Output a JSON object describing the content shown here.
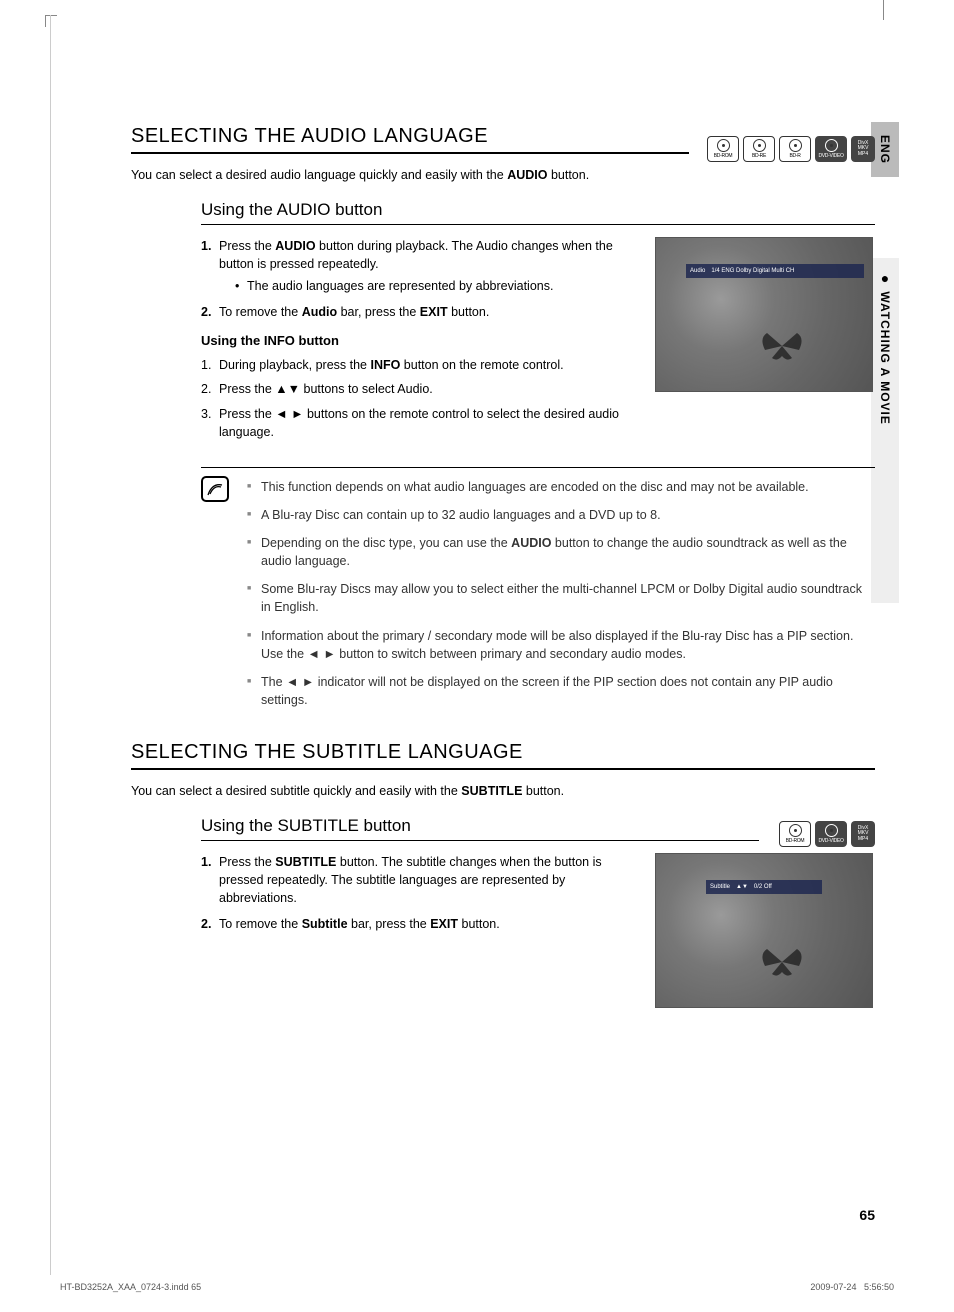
{
  "side_tabs": {
    "lang": "ENG",
    "section": "WATCHING A MOVIE",
    "bullet": "●"
  },
  "section1": {
    "title": "SELECTING THE AUDIO LANGUAGE",
    "intro_pre": "You can select a desired audio language quickly and easily with the ",
    "intro_bold": "AUDIO",
    "intro_post": " button.",
    "sub_title": "Using the AUDIO button",
    "disc_icons": [
      "BD-ROM",
      "BD-RE",
      "BD-R",
      "DVD-VIDEO"
    ],
    "divx_lines": [
      "DivX",
      "MKV",
      "MP4"
    ],
    "steps": {
      "s1_a": "Press the ",
      "s1_bold": "AUDIO",
      "s1_b": " button during playback. The Audio changes when the button is pressed repeatedly.",
      "s1_bullet": "The audio languages are represented by abbreviations.",
      "s2_a": "To remove the ",
      "s2_bold1": "Audio",
      "s2_b": " bar, press the ",
      "s2_bold2": "EXIT",
      "s2_c": " button."
    },
    "info_head": "Using the INFO button",
    "info_steps": {
      "i1_a": "During playback, press the ",
      "i1_bold": "INFO",
      "i1_b": " button on the remote control.",
      "i2": "Press the ▲▼ buttons to select Audio.",
      "i3": "Press the ◄ ► buttons on the remote control to select the desired audio language."
    },
    "screenshot_bar": {
      "label": "Audio",
      "value": "1/4 ENG Dolby Digital Multi CH"
    },
    "notes": [
      "This function depends on what audio languages are encoded on the disc and may not be available.",
      "A Blu-ray Disc can contain up to 32 audio languages and a DVD up to 8.",
      {
        "a": "Depending on the disc type, you can use the ",
        "bold": "AUDIO",
        "b": " button to change the audio soundtrack as well as the audio language."
      },
      "Some Blu-ray Discs may allow you to select either the multi-channel LPCM or Dolby Digital audio soundtrack in English.",
      {
        "line1": "Information about the primary / secondary mode will be also displayed if the Blu-ray Disc has a PIP section.",
        "line2": "Use the ◄ ► button to switch between primary and secondary audio modes."
      },
      "The ◄ ► indicator will not be displayed on the screen if the PIP section does not contain any PIP audio settings."
    ]
  },
  "section2": {
    "title": "SELECTING THE SUBTITLE LANGUAGE",
    "intro_pre": "You can select a desired subtitle quickly and easily with the ",
    "intro_bold": "SUBTITLE",
    "intro_post": " button.",
    "sub_title": "Using the SUBTITLE button",
    "disc_icons": [
      "BD-ROM",
      "DVD-VIDEO"
    ],
    "divx_lines": [
      "DivX",
      "MKV",
      "MP4"
    ],
    "steps": {
      "s1_a": "Press the ",
      "s1_bold": "SUBTITLE",
      "s1_b": " button. The subtitle changes when the button is pressed repeatedly. The subtitle languages are represented by abbreviations.",
      "s2_a": "To remove the ",
      "s2_bold1": "Subtitle",
      "s2_b": " bar, press the ",
      "s2_bold2": "EXIT",
      "s2_c": " button."
    },
    "screenshot_bar": {
      "label": "Subtitle",
      "arrows": "▲▼",
      "value": "0/2 Off"
    }
  },
  "page_number": "65",
  "footer": {
    "file": "HT-BD3252A_XAA_0724-3.indd   65",
    "date": "2009-07-24",
    "time": "5:56:50"
  },
  "colors": {
    "tab_bg": "#bbbbbb",
    "section_bg": "#eeeeee",
    "overlay_bg": "rgba(30,40,80,0.85)"
  }
}
